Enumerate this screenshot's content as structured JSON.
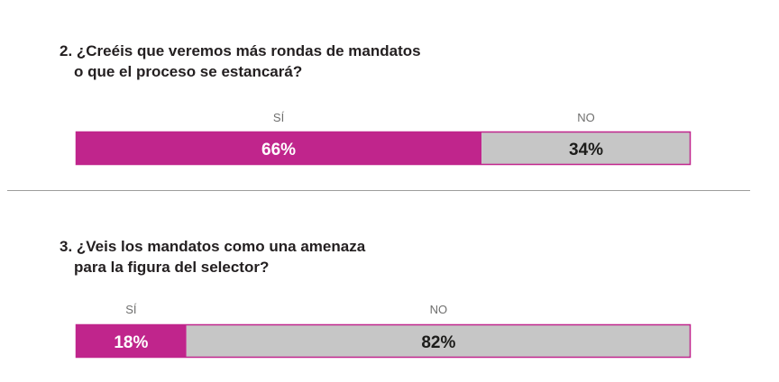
{
  "colors": {
    "si": "#c0258c",
    "no": "#c6c6c6",
    "si_text": "#ffffff",
    "no_text": "#1d1d1b",
    "border": "#c0258c"
  },
  "chart_data": [
    {
      "type": "bar",
      "orientation": "horizontal-stacked",
      "title": "2. ¿Creéis que veremos más rondas de mandatos o que el proceso se estancará?",
      "title_lines": [
        "2. ¿Creéis que veremos más rondas de mandatos",
        "o que el proceso se estancará?"
      ],
      "categories": [
        "SÍ",
        "NO"
      ],
      "values": [
        66,
        34
      ],
      "value_labels": [
        "66%",
        "34%"
      ],
      "unit": "%"
    },
    {
      "type": "bar",
      "orientation": "horizontal-stacked",
      "title": "3. ¿Veis los mandatos como una amenaza para la figura del selector?",
      "title_lines": [
        "3. ¿Veis los mandatos como una amenaza",
        "para la figura del selector?"
      ],
      "categories": [
        "SÍ",
        "NO"
      ],
      "values": [
        18,
        82
      ],
      "value_labels": [
        "18%",
        "82%"
      ],
      "unit": "%"
    }
  ]
}
